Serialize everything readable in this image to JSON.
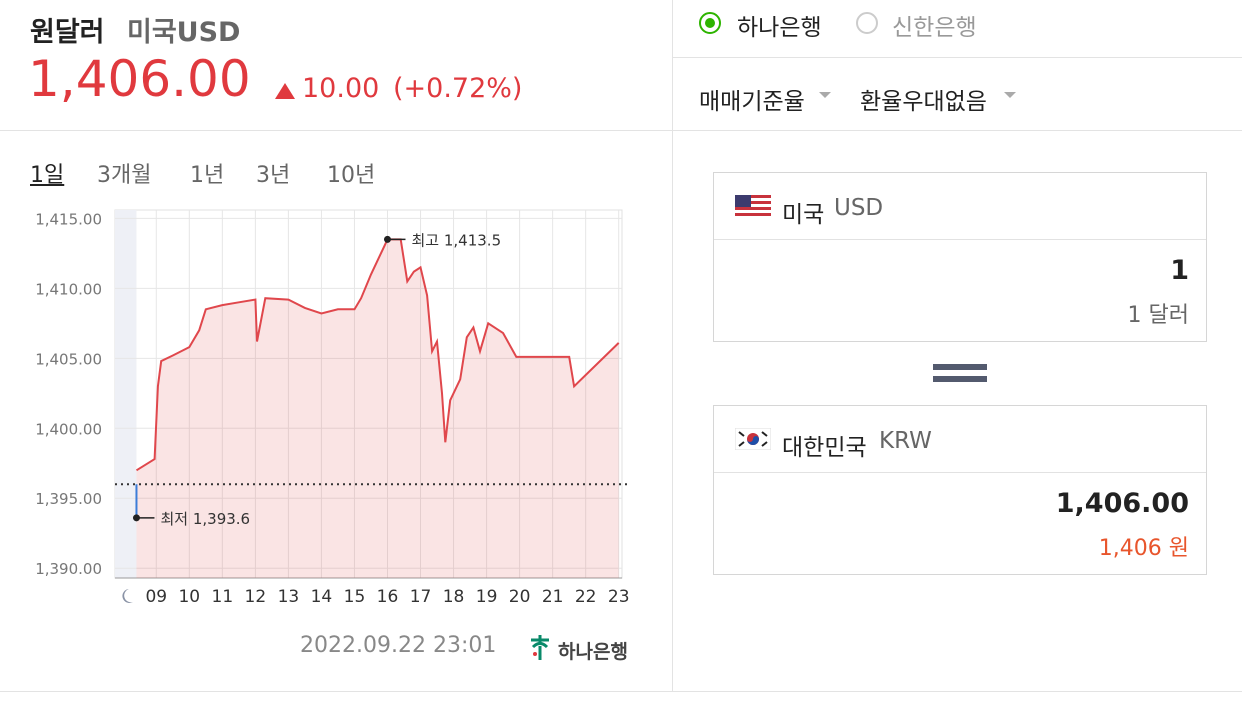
{
  "header": {
    "title": "원달러",
    "subtitle": "미국USD",
    "price": "1,406.00",
    "change": "10.00",
    "change_percent": "(+0.72%)"
  },
  "tabs": [
    "1일",
    "3개월",
    "1년",
    "3년",
    "10년"
  ],
  "chart_data": {
    "type": "line",
    "color": "#e0474c",
    "x": [
      8.4,
      8.95,
      9.05,
      9.15,
      9.5,
      10,
      10.3,
      10.5,
      11,
      11.5,
      12,
      12.05,
      12.3,
      13,
      13.5,
      14,
      14.5,
      15,
      15.2,
      15.5,
      15.8,
      16,
      16.4,
      16.6,
      16.8,
      17,
      17.2,
      17.35,
      17.5,
      17.65,
      17.75,
      17.9,
      18.2,
      18.4,
      18.6,
      18.8,
      19.05,
      19.5,
      19.9,
      21.5,
      21.65,
      23
    ],
    "values": [
      1397.0,
      1397.8,
      1403.0,
      1404.8,
      1405.2,
      1405.8,
      1407.0,
      1408.5,
      1408.8,
      1409.0,
      1409.2,
      1406.2,
      1409.3,
      1409.2,
      1408.6,
      1408.2,
      1408.5,
      1408.5,
      1409.3,
      1411.0,
      1412.5,
      1413.5,
      1413.5,
      1410.5,
      1411.2,
      1411.5,
      1409.5,
      1405.5,
      1406.2,
      1402.5,
      1399.0,
      1402.0,
      1403.5,
      1406.5,
      1407.2,
      1405.5,
      1407.5,
      1406.8,
      1405.1,
      1405.1,
      1403.0,
      1406.1
    ],
    "reference": 1396.0,
    "annotations": [
      {
        "label": "최고 1,413.5",
        "x": 16,
        "value": 1413.5
      },
      {
        "label": "최저 1,393.6",
        "x": 8.4,
        "value": 1393.6
      }
    ],
    "xlim": [
      7.75,
      23.1
    ],
    "ylim": [
      1389.3,
      1415.6
    ],
    "xticks": [
      {
        "value": 9,
        "label": "09"
      },
      10,
      11,
      12,
      13,
      14,
      15,
      16,
      17,
      18,
      19,
      20,
      21,
      22,
      23
    ],
    "yticks": [
      {
        "value": 1390,
        "label": "1,390.00"
      },
      {
        "value": 1395,
        "label": "1,395.00"
      },
      {
        "value": 1400,
        "label": "1,400.00"
      },
      {
        "value": 1405,
        "label": "1,405.00"
      },
      {
        "value": 1410,
        "label": "1,410.00"
      },
      {
        "value": 1415,
        "label": "1,415.00"
      }
    ],
    "grid": true
  },
  "footer": {
    "timestamp": "2022.09.22 23:01",
    "source": "하나은행"
  },
  "bank_options": [
    "하나은행",
    "신한은행"
  ],
  "dropdowns": [
    "매매기준율",
    "환율우대없음"
  ],
  "converter": {
    "from": {
      "country": "미국",
      "code": "USD",
      "amount": "1",
      "amount_text": "1 달러"
    },
    "to": {
      "country": "대한민국",
      "code": "KRW",
      "amount": "1,406.00",
      "amount_text": "1,406 원"
    }
  }
}
